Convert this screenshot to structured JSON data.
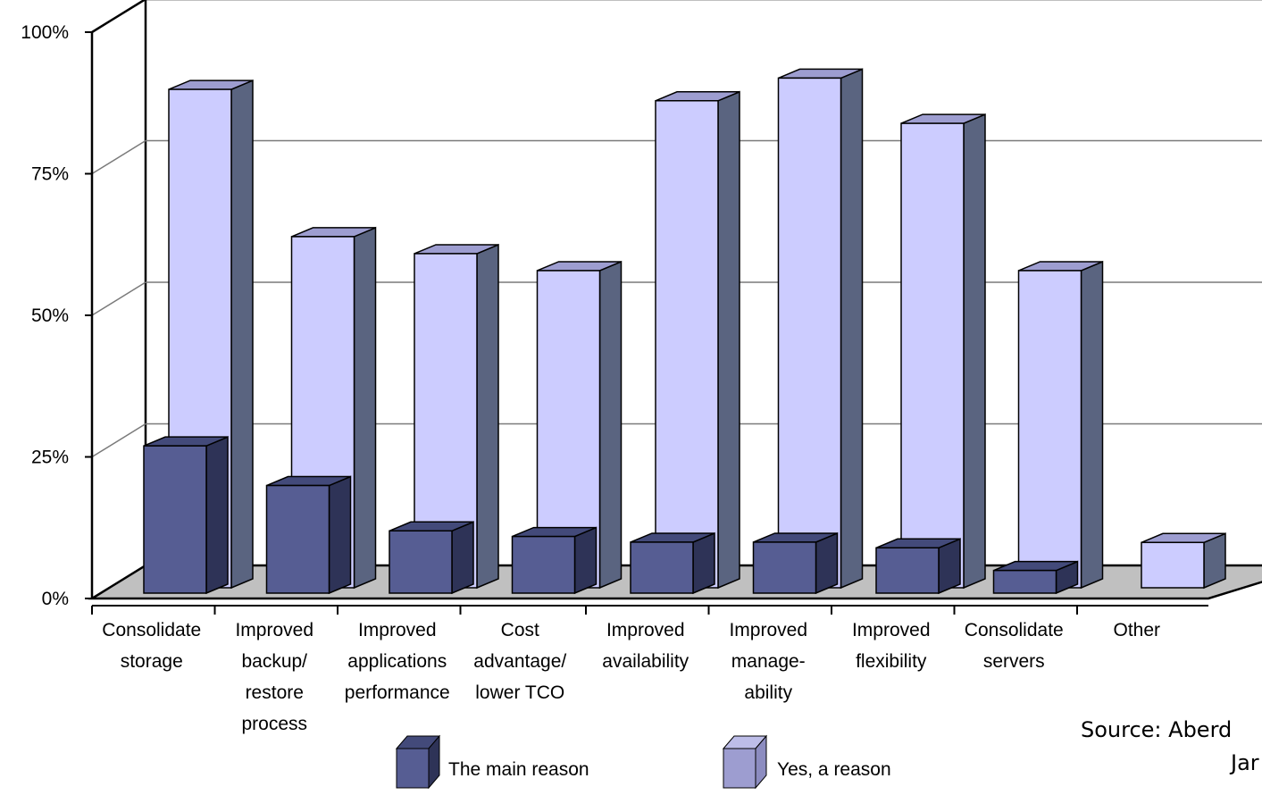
{
  "chart_data": {
    "type": "bar",
    "stacked": true,
    "three_d": true,
    "categories": [
      [
        "Consolidate",
        "storage"
      ],
      [
        "Improved",
        "backup/",
        "restore",
        "process"
      ],
      [
        "Improved",
        "applications",
        "performance"
      ],
      [
        "Cost",
        "advantage/",
        "lower TCO"
      ],
      [
        "Improved",
        "availability"
      ],
      [
        "Improved",
        "manage-",
        "ability"
      ],
      [
        "Improved",
        "flexibility"
      ],
      [
        "Consolidate",
        "servers"
      ],
      [
        "Other"
      ]
    ],
    "series": [
      {
        "name": "The main reason",
        "values": [
          26,
          19,
          11,
          10,
          9,
          9,
          8,
          4,
          0
        ],
        "color": "#565d93"
      },
      {
        "name": "Yes, a reason",
        "values": [
          62,
          43,
          48,
          46,
          77,
          81,
          74,
          52,
          8
        ],
        "color": "#ccccff"
      }
    ],
    "ylim": [
      0,
      100
    ],
    "yticks": [
      "0%",
      "25%",
      "50%",
      "75%",
      "100%"
    ],
    "grid": true,
    "legend": "bottom-center",
    "source_lines": [
      "Source: Aberd",
      "Jar"
    ]
  },
  "colors": {
    "main_front": "#565d93",
    "main_top": "#434a7a",
    "main_side": "#2e3357",
    "yes_front": "#ccccff",
    "yes_top": "#9d9dd0",
    "yes_side": "#5a6480",
    "floor": "#c0c0c0",
    "grid": "#7a7a7a"
  }
}
